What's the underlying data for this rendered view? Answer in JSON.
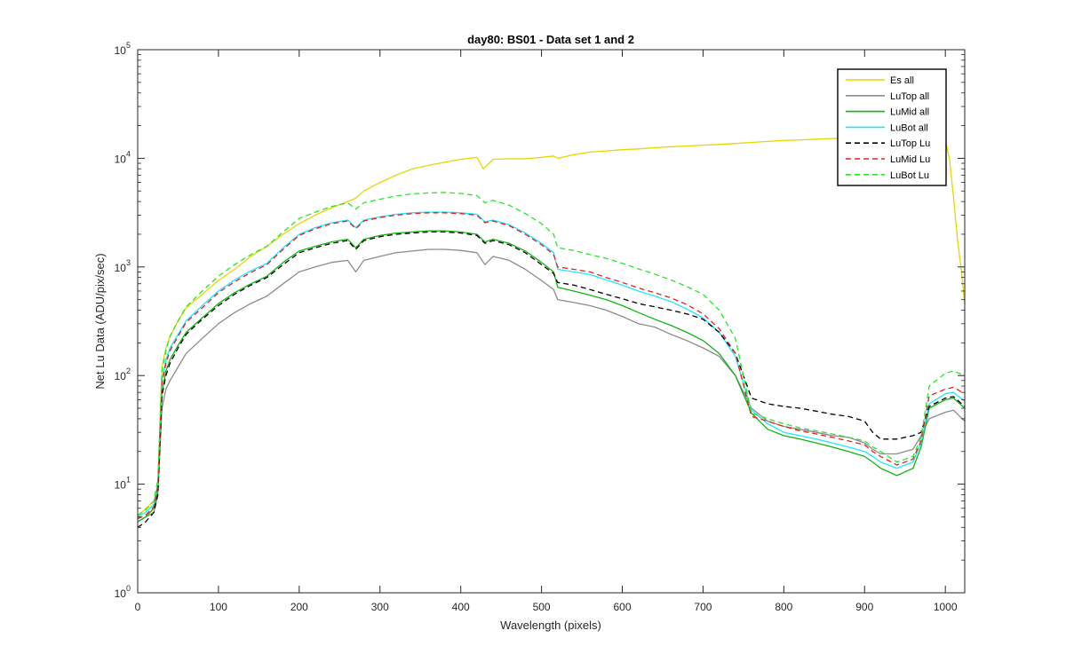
{
  "chart_data": {
    "type": "line",
    "title": "day80: BS01 - Data set 1 and 2",
    "xlabel": "Wavelength (pixels)",
    "ylabel": "Net Lu Data (ADU/pix/sec)",
    "xlim": [
      0,
      1024
    ],
    "ylim": [
      1,
      100000
    ],
    "yscale": "log",
    "xticks": [
      0,
      100,
      200,
      300,
      400,
      500,
      600,
      700,
      800,
      900,
      1000
    ],
    "xtick_labels": [
      "0",
      "100",
      "200",
      "300",
      "400",
      "500",
      "600",
      "700",
      "800",
      "900",
      "1000"
    ],
    "yticks": [
      1,
      10,
      100,
      1000,
      10000,
      100000
    ],
    "ytick_labels": [
      {
        "base": "10",
        "exp": "0"
      },
      {
        "base": "10",
        "exp": "1"
      },
      {
        "base": "10",
        "exp": "2"
      },
      {
        "base": "10",
        "exp": "3"
      },
      {
        "base": "10",
        "exp": "4"
      },
      {
        "base": "10",
        "exp": "5"
      }
    ],
    "grid": false,
    "legend_position": "top-right",
    "series": [
      {
        "name": "Es  all",
        "color": "#e6d700",
        "dash": "solid",
        "x": [
          0,
          10,
          20,
          25,
          30,
          35,
          40,
          50,
          60,
          80,
          100,
          120,
          140,
          160,
          180,
          200,
          220,
          240,
          260,
          270,
          280,
          300,
          320,
          340,
          360,
          380,
          400,
          420,
          428,
          440,
          460,
          480,
          500,
          515,
          520,
          540,
          560,
          580,
          600,
          620,
          640,
          660,
          680,
          700,
          720,
          740,
          760,
          780,
          800,
          820,
          840,
          860,
          880,
          900,
          920,
          940,
          960,
          980,
          1000,
          1005,
          1010,
          1015,
          1020,
          1024
        ],
        "y": [
          5,
          6,
          7,
          10,
          120,
          180,
          230,
          320,
          420,
          560,
          750,
          950,
          1250,
          1550,
          2000,
          2500,
          3000,
          3500,
          4000,
          4300,
          5000,
          6000,
          7000,
          8000,
          8600,
          9200,
          9800,
          10200,
          8000,
          9800,
          9900,
          9900,
          10200,
          10500,
          10000,
          10800,
          11400,
          11700,
          12000,
          12200,
          12500,
          12800,
          13000,
          13200,
          13400,
          13700,
          14000,
          14300,
          14600,
          14800,
          15000,
          15200,
          15400,
          15500,
          15600,
          15600,
          15500,
          15300,
          14500,
          10000,
          4500,
          1800,
          900,
          450
        ]
      },
      {
        "name": "LuTop  all",
        "color": "#8c8c8c",
        "dash": "solid",
        "x": [
          0,
          10,
          20,
          25,
          30,
          35,
          40,
          50,
          60,
          80,
          100,
          120,
          140,
          160,
          180,
          200,
          220,
          240,
          260,
          270,
          280,
          300,
          320,
          340,
          360,
          380,
          400,
          420,
          430,
          440,
          460,
          480,
          500,
          515,
          520,
          540,
          560,
          580,
          600,
          620,
          640,
          660,
          680,
          700,
          720,
          740,
          760,
          780,
          800,
          820,
          840,
          860,
          880,
          900,
          910,
          920,
          940,
          960,
          970,
          980,
          1000,
          1010,
          1024
        ],
        "y": [
          4.5,
          5,
          5.5,
          8,
          50,
          75,
          90,
          120,
          160,
          220,
          300,
          380,
          460,
          540,
          700,
          900,
          1000,
          1100,
          1150,
          900,
          1150,
          1250,
          1350,
          1400,
          1450,
          1450,
          1420,
          1350,
          1050,
          1250,
          1150,
          950,
          750,
          620,
          500,
          470,
          440,
          400,
          350,
          300,
          280,
          240,
          210,
          180,
          150,
          100,
          50,
          38,
          34,
          32,
          30,
          28,
          27,
          24,
          21,
          19,
          19,
          21,
          28,
          40,
          46,
          48,
          38
        ]
      },
      {
        "name": "LuMid  all",
        "color": "#11b411",
        "dash": "solid",
        "x": [
          0,
          10,
          20,
          25,
          30,
          35,
          40,
          50,
          60,
          80,
          100,
          120,
          140,
          160,
          180,
          200,
          220,
          240,
          260,
          270,
          280,
          300,
          320,
          340,
          360,
          380,
          400,
          420,
          430,
          440,
          460,
          480,
          500,
          515,
          520,
          540,
          560,
          580,
          600,
          620,
          640,
          660,
          680,
          700,
          720,
          740,
          760,
          780,
          800,
          820,
          840,
          860,
          880,
          900,
          910,
          920,
          940,
          960,
          970,
          980,
          1000,
          1010,
          1024
        ],
        "y": [
          4.5,
          5,
          6,
          9,
          70,
          110,
          140,
          190,
          250,
          340,
          460,
          580,
          700,
          820,
          1100,
          1400,
          1550,
          1700,
          1800,
          1500,
          1800,
          1950,
          2050,
          2100,
          2150,
          2150,
          2100,
          2000,
          1700,
          1800,
          1650,
          1400,
          1100,
          900,
          650,
          600,
          550,
          500,
          440,
          380,
          330,
          290,
          250,
          210,
          160,
          100,
          45,
          32,
          28,
          26,
          24,
          22,
          20,
          18,
          16,
          14,
          12,
          14,
          22,
          50,
          60,
          62,
          50
        ]
      },
      {
        "name": "LuBot  all",
        "color": "#1ee6ff",
        "dash": "solid",
        "x": [
          0,
          10,
          20,
          25,
          30,
          35,
          40,
          50,
          60,
          80,
          100,
          120,
          140,
          160,
          180,
          200,
          220,
          240,
          260,
          270,
          280,
          300,
          320,
          340,
          360,
          380,
          400,
          420,
          430,
          440,
          460,
          480,
          500,
          515,
          520,
          540,
          560,
          580,
          600,
          620,
          640,
          660,
          680,
          700,
          720,
          740,
          760,
          780,
          800,
          820,
          840,
          860,
          880,
          900,
          910,
          920,
          940,
          960,
          970,
          980,
          1000,
          1010,
          1024
        ],
        "y": [
          5,
          5.5,
          6.5,
          10,
          90,
          140,
          180,
          240,
          320,
          440,
          600,
          760,
          920,
          1080,
          1500,
          2000,
          2300,
          2550,
          2700,
          2300,
          2700,
          2900,
          3050,
          3150,
          3200,
          3200,
          3150,
          3050,
          2600,
          2700,
          2450,
          2050,
          1650,
          1350,
          950,
          900,
          850,
          760,
          680,
          600,
          540,
          480,
          410,
          340,
          250,
          150,
          48,
          36,
          30,
          28,
          26,
          24,
          22,
          20,
          18,
          16,
          14,
          16,
          24,
          55,
          68,
          70,
          58
        ]
      },
      {
        "name": "LuTop  Lu",
        "color": "#000000",
        "dash": "dashed",
        "x": [
          0,
          10,
          20,
          25,
          30,
          35,
          40,
          50,
          60,
          80,
          100,
          120,
          140,
          160,
          180,
          200,
          220,
          240,
          260,
          270,
          280,
          300,
          320,
          340,
          360,
          380,
          400,
          420,
          430,
          440,
          460,
          480,
          500,
          515,
          520,
          540,
          560,
          580,
          600,
          620,
          640,
          660,
          680,
          700,
          720,
          740,
          760,
          780,
          800,
          820,
          840,
          860,
          880,
          900,
          910,
          920,
          940,
          960,
          970,
          980,
          1000,
          1010,
          1024
        ],
        "y": [
          4,
          4.5,
          5.5,
          8,
          65,
          100,
          130,
          180,
          240,
          330,
          440,
          560,
          680,
          800,
          1050,
          1350,
          1500,
          1650,
          1750,
          1450,
          1750,
          1900,
          2000,
          2050,
          2100,
          2100,
          2050,
          1950,
          1650,
          1750,
          1600,
          1350,
          1050,
          870,
          720,
          680,
          620,
          560,
          510,
          460,
          430,
          400,
          370,
          330,
          250,
          160,
          62,
          55,
          52,
          50,
          47,
          44,
          42,
          38,
          30,
          26,
          26,
          28,
          30,
          52,
          62,
          64,
          52
        ]
      },
      {
        "name": "LuMid  Lu",
        "color": "#e61e1e",
        "dash": "dashed",
        "x": [
          0,
          10,
          20,
          25,
          30,
          35,
          40,
          50,
          60,
          80,
          100,
          120,
          140,
          160,
          180,
          200,
          220,
          240,
          260,
          270,
          280,
          300,
          320,
          340,
          360,
          380,
          400,
          420,
          430,
          440,
          460,
          480,
          500,
          515,
          520,
          540,
          560,
          580,
          600,
          620,
          640,
          660,
          680,
          700,
          720,
          740,
          760,
          780,
          800,
          820,
          840,
          860,
          880,
          900,
          910,
          920,
          940,
          960,
          970,
          980,
          1000,
          1010,
          1024
        ],
        "y": [
          4.8,
          5.2,
          6.2,
          9.5,
          85,
          130,
          170,
          230,
          310,
          420,
          580,
          730,
          890,
          1050,
          1450,
          1950,
          2250,
          2500,
          2650,
          2250,
          2650,
          2850,
          3000,
          3100,
          3150,
          3150,
          3100,
          3000,
          2550,
          2650,
          2400,
          2000,
          1600,
          1300,
          1000,
          950,
          900,
          800,
          720,
          640,
          580,
          520,
          450,
          370,
          270,
          160,
          42,
          38,
          34,
          31,
          29,
          27,
          25,
          23,
          20,
          18,
          15,
          17,
          25,
          65,
          75,
          78,
          68
        ]
      },
      {
        "name": "LuBot  Lu",
        "color": "#28e628",
        "dash": "dashed",
        "x": [
          0,
          10,
          20,
          25,
          30,
          35,
          40,
          50,
          60,
          80,
          100,
          120,
          140,
          160,
          180,
          200,
          220,
          240,
          260,
          270,
          280,
          300,
          320,
          340,
          360,
          380,
          400,
          420,
          430,
          440,
          460,
          480,
          500,
          515,
          520,
          540,
          560,
          580,
          600,
          620,
          640,
          660,
          680,
          700,
          720,
          740,
          760,
          780,
          800,
          820,
          840,
          860,
          880,
          900,
          910,
          920,
          940,
          960,
          970,
          980,
          1000,
          1010,
          1024
        ],
        "y": [
          5.2,
          5.8,
          7,
          11,
          110,
          170,
          230,
          320,
          430,
          600,
          820,
          1050,
          1300,
          1550,
          2100,
          2800,
          3200,
          3600,
          3900,
          3400,
          3900,
          4200,
          4500,
          4700,
          4800,
          4850,
          4750,
          4550,
          3900,
          4100,
          3700,
          3100,
          2500,
          2000,
          1500,
          1420,
          1300,
          1200,
          1080,
          960,
          860,
          760,
          660,
          560,
          400,
          220,
          45,
          40,
          36,
          33,
          31,
          29,
          27,
          25,
          22,
          20,
          16,
          18,
          27,
          80,
          105,
          110,
          100
        ]
      }
    ]
  }
}
